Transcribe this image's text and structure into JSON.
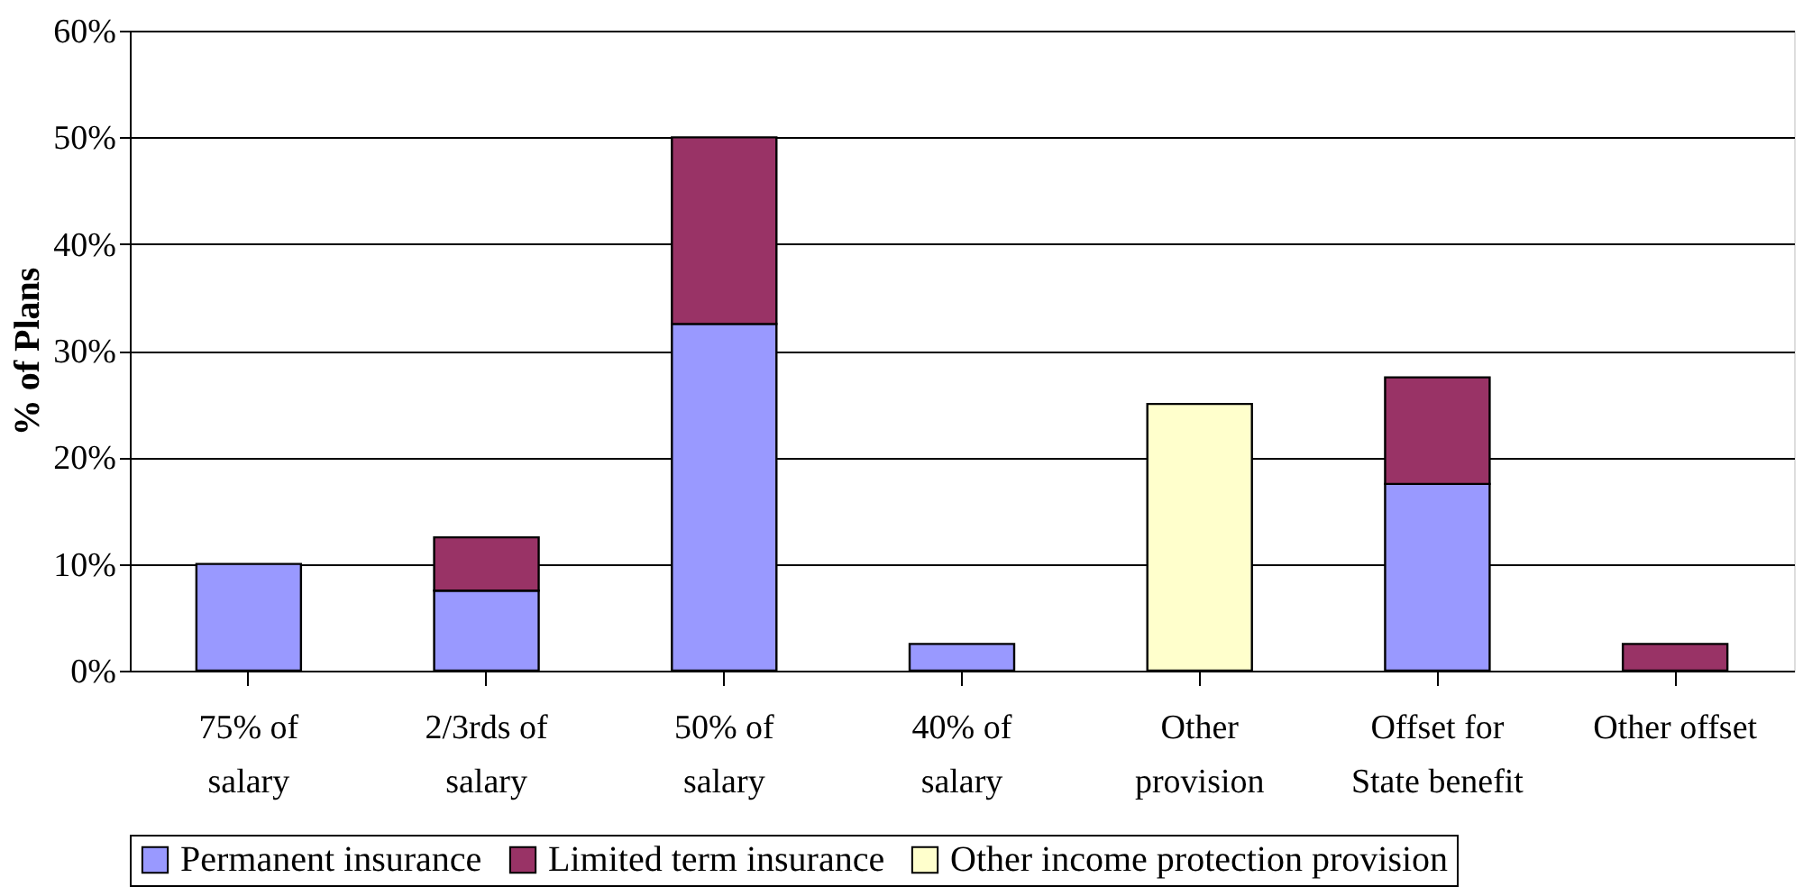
{
  "chart_data": {
    "type": "bar",
    "ylabel": "% of Plans",
    "stacked": true,
    "categories": [
      "75% of\nsalary",
      "2/3rds of\nsalary",
      "50% of\nsalary",
      "40% of\nsalary",
      "Other\nprovision",
      "Offset for\nState benefit",
      "Other offset"
    ],
    "series": [
      {
        "name": "Permanent insurance",
        "color": "#9999ff",
        "values": [
          10,
          7.5,
          32.5,
          2.5,
          null,
          17.5,
          null
        ]
      },
      {
        "name": "Limited term insurance",
        "color": "#993366",
        "values": [
          null,
          5,
          17.5,
          null,
          null,
          10,
          2.5
        ]
      },
      {
        "name": "Other income protection provision",
        "color": "#ffffcc",
        "values": [
          null,
          null,
          null,
          null,
          25,
          null,
          null
        ]
      }
    ],
    "ylim": [
      0,
      60
    ],
    "yticks": [
      {
        "value": 0,
        "label": "0%"
      },
      {
        "value": 10,
        "label": "10%"
      },
      {
        "value": 20,
        "label": "20%"
      },
      {
        "value": 30,
        "label": "30%"
      },
      {
        "value": 40,
        "label": "40%"
      },
      {
        "value": 50,
        "label": "50%"
      },
      {
        "value": 60,
        "label": "60%"
      }
    ],
    "grid": "y",
    "legend": "bottom"
  }
}
